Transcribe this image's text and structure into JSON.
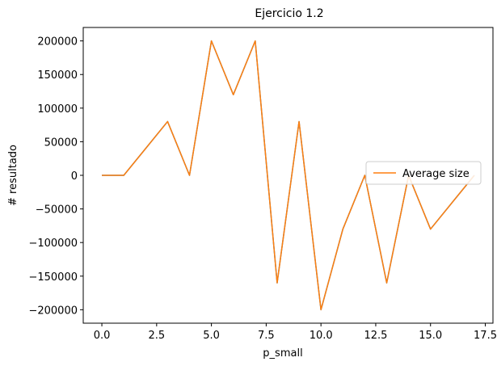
{
  "chart_data": {
    "type": "line",
    "title": "Ejercicio 1.2",
    "xlabel": "p_small",
    "ylabel": "# resultado",
    "xlim": [
      -0.85,
      17.85
    ],
    "ylim": [
      -220000,
      220000
    ],
    "xticks": [
      0.0,
      2.5,
      5.0,
      7.5,
      10.0,
      12.5,
      15.0,
      17.5
    ],
    "xtick_labels": [
      "0.0",
      "2.5",
      "5.0",
      "7.5",
      "10.0",
      "12.5",
      "15.0",
      "17.5"
    ],
    "yticks": [
      -200000,
      -150000,
      -100000,
      -50000,
      0,
      50000,
      100000,
      150000,
      200000
    ],
    "ytick_labels": [
      "−200000",
      "−150000",
      "−100000",
      "−50000",
      "0",
      "50000",
      "100000",
      "150000",
      "200000"
    ],
    "grid": false,
    "legend_position": "center-right",
    "series": [
      {
        "name": "",
        "color": "#1f77b4",
        "x": [
          0,
          1,
          2,
          3,
          4,
          5,
          6,
          7,
          8,
          9,
          10,
          11,
          12,
          13,
          14,
          15,
          16,
          17
        ],
        "y": [
          0,
          0,
          40000,
          80000,
          0,
          200000,
          120000,
          200000,
          -160000,
          80000,
          -200000,
          -80000,
          0,
          -160000,
          0,
          -80000,
          -40000,
          0
        ]
      },
      {
        "name": "Average size",
        "color": "#ff7f0e",
        "x": [
          0,
          1,
          2,
          3,
          4,
          5,
          6,
          7,
          8,
          9,
          10,
          11,
          12,
          13,
          14,
          15,
          16,
          17
        ],
        "y": [
          0,
          0,
          40000,
          80000,
          0,
          200000,
          120000,
          200000,
          -160000,
          80000,
          -200000,
          -80000,
          0,
          -160000,
          0,
          -80000,
          -40000,
          0
        ]
      }
    ]
  }
}
